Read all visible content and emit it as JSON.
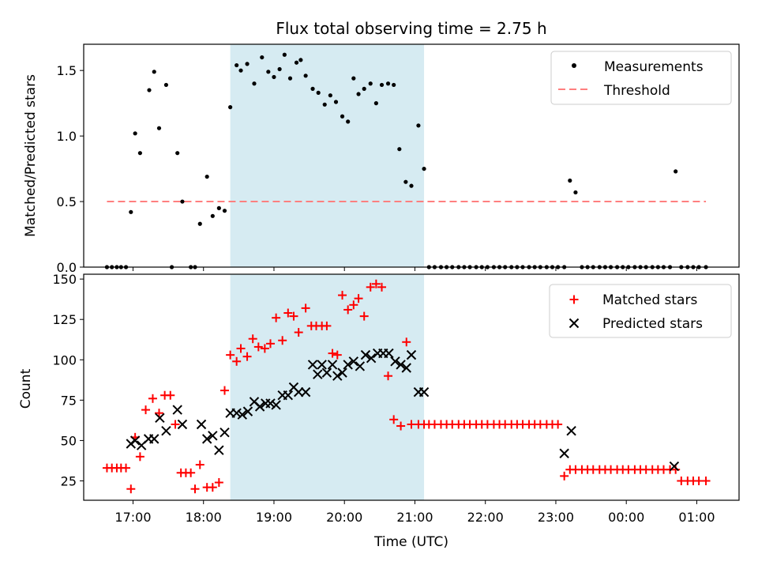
{
  "colors": {
    "shade": "#add8e6",
    "measurement": "#000000",
    "threshold": "#ff7f7f",
    "matched": "#ff0000",
    "predicted": "#000000"
  },
  "chart_data": [
    {
      "type": "scatter",
      "title": "Flux total observing time = 2.75 h",
      "xlabel": "",
      "ylabel": "Matched/Predicted stars",
      "ylim": [
        0,
        1.7
      ],
      "yticks": [
        0.0,
        0.5,
        1.0,
        1.5
      ],
      "ytick_labels": [
        "0.0",
        "0.5",
        "1.0",
        "1.5"
      ],
      "x_unit": "hours since 00:00 UTC, continuing past midnight",
      "xlim": [
        16.3,
        25.6
      ],
      "shaded_span": [
        18.38,
        21.13
      ],
      "legend": {
        "placement": "top-right",
        "entries": [
          "Measurements",
          "Threshold"
        ]
      },
      "threshold": {
        "name": "Threshold",
        "y": 0.5,
        "x_range": [
          16.63,
          25.13
        ]
      },
      "series": [
        {
          "name": "Measurements",
          "x": [
            16.63,
            16.7,
            16.77,
            16.83,
            16.9,
            16.97,
            17.03,
            17.1,
            17.23,
            17.3,
            17.37,
            17.47,
            17.55,
            17.63,
            17.7,
            17.82,
            17.88,
            17.95,
            18.05,
            18.13,
            18.22,
            18.3,
            18.38,
            18.47,
            18.53,
            18.62,
            18.72,
            18.83,
            18.92,
            19.0,
            19.08,
            19.15,
            19.23,
            19.32,
            19.38,
            19.45,
            19.55,
            19.63,
            19.72,
            19.8,
            19.88,
            19.97,
            20.05,
            20.13,
            20.2,
            20.28,
            20.37,
            20.45,
            20.53,
            20.62,
            20.7,
            20.78,
            20.87,
            20.95,
            21.05,
            21.13,
            21.2,
            21.28,
            21.37,
            21.45,
            21.53,
            21.62,
            21.7,
            21.78,
            21.87,
            21.95,
            22.03,
            22.12,
            22.2,
            22.28,
            22.37,
            22.45,
            22.53,
            22.62,
            22.7,
            22.78,
            22.87,
            22.95,
            23.03,
            23.12,
            23.2,
            23.28,
            23.37,
            23.45,
            23.53,
            23.62,
            23.7,
            23.78,
            23.87,
            23.95,
            24.03,
            24.12,
            24.2,
            24.28,
            24.37,
            24.45,
            24.53,
            24.62,
            24.7,
            24.78,
            24.87,
            24.95,
            25.03,
            25.13
          ],
          "y": [
            0,
            0,
            0,
            0,
            0,
            0.42,
            1.02,
            0.87,
            1.35,
            1.49,
            1.06,
            1.39,
            0,
            0.87,
            0.5,
            0,
            0,
            0.33,
            0.69,
            0.39,
            0.45,
            0.43,
            1.22,
            1.54,
            1.5,
            1.55,
            1.4,
            1.6,
            1.49,
            1.45,
            1.51,
            1.62,
            1.44,
            1.56,
            1.58,
            1.46,
            1.36,
            1.33,
            1.24,
            1.31,
            1.26,
            1.15,
            1.11,
            1.44,
            1.32,
            1.36,
            1.4,
            1.25,
            1.39,
            1.4,
            1.39,
            0.9,
            0.65,
            0.62,
            1.08,
            0.75,
            0,
            0,
            0,
            0,
            0,
            0,
            0,
            0,
            0,
            0,
            0,
            0,
            0,
            0,
            0,
            0,
            0,
            0,
            0,
            0,
            0,
            0,
            0,
            0,
            0.66,
            0.57,
            0,
            0,
            0,
            0,
            0,
            0,
            0,
            0,
            0,
            0,
            0,
            0,
            0,
            0,
            0,
            0,
            0.73,
            0,
            0,
            0,
            0,
            0
          ]
        }
      ]
    },
    {
      "type": "scatter",
      "title": "",
      "xlabel": "Time (UTC)",
      "ylabel": "Count",
      "ylim": [
        13,
        153
      ],
      "yticks": [
        25,
        50,
        75,
        100,
        125,
        150
      ],
      "ytick_labels": [
        "25",
        "50",
        "75",
        "100",
        "125",
        "150"
      ],
      "x_unit": "hours since 00:00 UTC, continuing past midnight",
      "xlim": [
        16.3,
        25.6
      ],
      "xticks": [
        17,
        18,
        19,
        20,
        21,
        22,
        23,
        24,
        25
      ],
      "xtick_labels": [
        "17:00",
        "18:00",
        "19:00",
        "20:00",
        "21:00",
        "22:00",
        "23:00",
        "00:00",
        "01:00"
      ],
      "shaded_span": [
        18.38,
        21.13
      ],
      "legend": {
        "placement": "top-right",
        "entries": [
          "Matched stars",
          "Predicted stars"
        ]
      },
      "series": [
        {
          "name": "Matched stars",
          "marker": "plus",
          "x": [
            16.63,
            16.7,
            16.77,
            16.83,
            16.9,
            16.97,
            17.03,
            17.1,
            17.18,
            17.28,
            17.37,
            17.45,
            17.53,
            17.6,
            17.68,
            17.75,
            17.82,
            17.88,
            17.95,
            18.05,
            18.13,
            18.22,
            18.3,
            18.38,
            18.47,
            18.53,
            18.62,
            18.7,
            18.78,
            18.87,
            18.95,
            19.03,
            19.12,
            19.2,
            19.28,
            19.35,
            19.45,
            19.53,
            19.6,
            19.68,
            19.75,
            19.83,
            19.9,
            19.97,
            20.05,
            20.13,
            20.2,
            20.28,
            20.37,
            20.45,
            20.53,
            20.62,
            20.7,
            20.8,
            20.88,
            20.95,
            21.05,
            21.13,
            21.2,
            21.28,
            21.37,
            21.45,
            21.53,
            21.62,
            21.7,
            21.78,
            21.87,
            21.95,
            22.03,
            22.12,
            22.2,
            22.28,
            22.37,
            22.45,
            22.53,
            22.62,
            22.7,
            22.78,
            22.87,
            22.95,
            23.03,
            23.12,
            23.2,
            23.28,
            23.37,
            23.45,
            23.53,
            23.62,
            23.7,
            23.78,
            23.87,
            23.95,
            24.03,
            24.12,
            24.2,
            24.28,
            24.37,
            24.45,
            24.53,
            24.62,
            24.7,
            24.78,
            24.87,
            24.95,
            25.03,
            25.13
          ],
          "y": [
            33,
            33,
            33,
            33,
            33,
            20,
            52,
            40,
            69,
            76,
            67,
            78,
            78,
            60,
            30,
            30,
            30,
            20,
            35,
            21,
            21,
            24,
            81,
            103,
            99,
            107,
            102,
            113,
            108,
            107,
            110,
            126,
            112,
            129,
            127,
            117,
            132,
            121,
            121,
            121,
            121,
            104,
            103,
            140,
            131,
            134,
            138,
            127,
            145,
            147,
            145,
            90,
            63,
            59,
            111,
            60,
            60,
            60,
            60,
            60,
            60,
            60,
            60,
            60,
            60,
            60,
            60,
            60,
            60,
            60,
            60,
            60,
            60,
            60,
            60,
            60,
            60,
            60,
            60,
            60,
            60,
            28,
            32,
            32,
            32,
            32,
            32,
            32,
            32,
            32,
            32,
            32,
            32,
            32,
            32,
            32,
            32,
            32,
            32,
            32,
            32,
            25,
            25,
            25,
            25,
            25
          ]
        },
        {
          "name": "Predicted stars",
          "marker": "x",
          "x": [
            16.97,
            17.03,
            17.12,
            17.22,
            17.3,
            17.38,
            17.47,
            17.63,
            17.7,
            17.97,
            18.05,
            18.13,
            18.22,
            18.3,
            18.38,
            18.47,
            18.55,
            18.63,
            18.72,
            18.8,
            18.88,
            18.95,
            19.03,
            19.12,
            19.2,
            19.28,
            19.35,
            19.45,
            19.55,
            19.62,
            19.68,
            19.75,
            19.83,
            19.9,
            19.97,
            20.05,
            20.13,
            20.22,
            20.3,
            20.38,
            20.47,
            20.55,
            20.63,
            20.72,
            20.8,
            20.88,
            20.95,
            21.05,
            21.13,
            23.12,
            23.22,
            24.68
          ],
          "y": [
            48,
            50,
            47,
            51,
            51,
            64,
            56,
            69,
            60,
            60,
            51,
            53,
            44,
            55,
            67,
            67,
            66,
            68,
            74,
            71,
            73,
            73,
            72,
            78,
            78,
            83,
            80,
            80,
            97,
            91,
            97,
            92,
            97,
            90,
            92,
            97,
            99,
            96,
            103,
            101,
            104,
            104,
            104,
            99,
            97,
            95,
            103,
            80,
            80,
            42,
            56,
            34
          ]
        }
      ]
    }
  ]
}
